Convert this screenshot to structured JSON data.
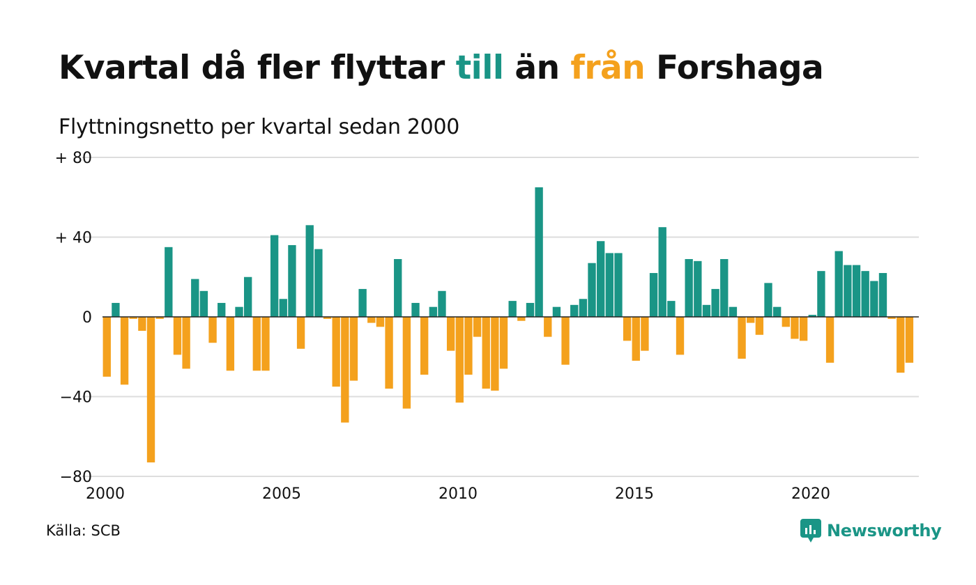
{
  "title": {
    "part1": "Kvartal då fler flyttar ",
    "part2": "till",
    "part3": " än ",
    "part4": "från",
    "part5": " Forshaga"
  },
  "subtitle": "Flyttningsnetto per kvartal sedan 2000",
  "source": "Källa: SCB",
  "logo": {
    "text": "Newsworthy",
    "icon": "newsworthy-logo-icon"
  },
  "colors": {
    "positive": "#1a9586",
    "negative": "#f4a11d",
    "grid": "#dddddd",
    "zero": "#222222"
  },
  "chart_data": {
    "type": "bar",
    "title": "Kvartal då fler flyttar till än från Forshaga",
    "subtitle": "Flyttningsnetto per kvartal sedan 2000",
    "ylim": [
      -80,
      80
    ],
    "y_ticks": [
      {
        "value": 80,
        "label": "+ 80"
      },
      {
        "value": 40,
        "label": "+ 40"
      },
      {
        "value": 0,
        "label": "0"
      },
      {
        "value": -40,
        "label": "−40"
      },
      {
        "value": -80,
        "label": "−80"
      }
    ],
    "x_ticks": [
      {
        "value": 2000,
        "label": "2000"
      },
      {
        "value": 2005,
        "label": "2005"
      },
      {
        "value": 2010,
        "label": "2010"
      },
      {
        "value": 2015,
        "label": "2015"
      },
      {
        "value": 2020,
        "label": "2020"
      }
    ],
    "x_start": "2000 Q1",
    "grid": true,
    "legend": "none",
    "values": [
      -30,
      7,
      -34,
      -1,
      -7,
      -73,
      -1,
      35,
      -19,
      -26,
      19,
      13,
      -13,
      7,
      -27,
      5,
      20,
      -27,
      -27,
      41,
      9,
      36,
      -16,
      46,
      34,
      -1,
      -35,
      -53,
      -32,
      14,
      -3,
      -5,
      -36,
      29,
      -46,
      7,
      -29,
      5,
      13,
      -17,
      -43,
      -29,
      -10,
      -36,
      -37,
      -26,
      8,
      -2,
      7,
      65,
      -10,
      5,
      -24,
      6,
      9,
      27,
      38,
      32,
      32,
      -12,
      -22,
      -17,
      22,
      45,
      8,
      -19,
      29,
      28,
      6,
      14,
      29,
      5,
      -21,
      -3,
      -9,
      17,
      5,
      -5,
      -11,
      -12,
      1,
      23,
      -23,
      33,
      26,
      26,
      23,
      18,
      22,
      -1,
      -28,
      -23
    ]
  }
}
